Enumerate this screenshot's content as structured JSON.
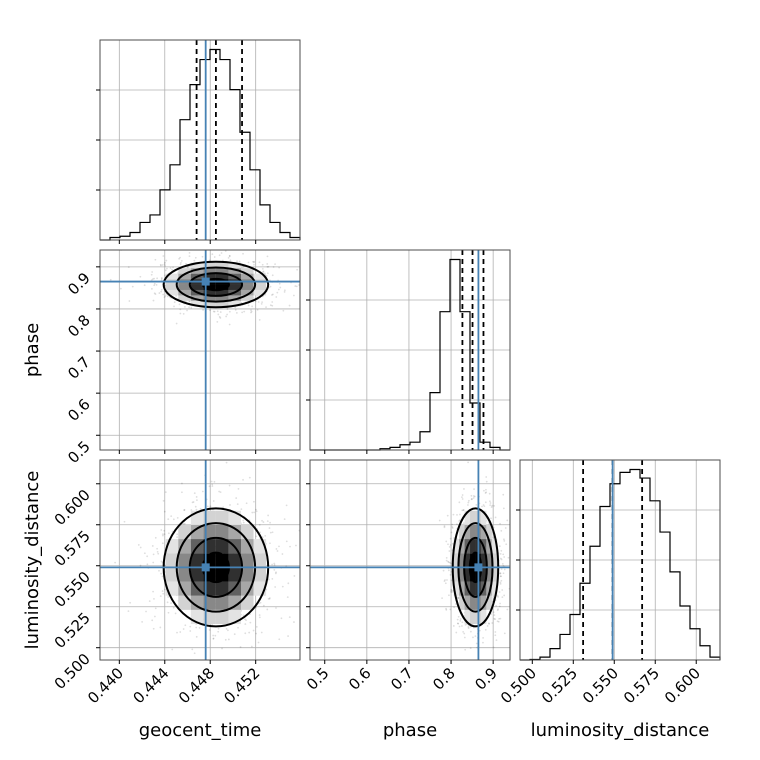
{
  "chart_data": {
    "type": "corner",
    "parameters": [
      "geocent_time",
      "phase",
      "luminosity_distance"
    ],
    "axis_labels": {
      "bottom": [
        "geocent_time",
        "phase",
        "luminosity_distance"
      ],
      "left": [
        "",
        "phase",
        "luminosity_distance"
      ]
    },
    "truths": {
      "geocent_time": 0.4476,
      "phase": 0.865,
      "luminosity_distance": 0.549
    },
    "truth_color": "#4682b4",
    "ranges": {
      "geocent_time": [
        0.4383,
        0.4559
      ],
      "phase": [
        0.465,
        0.94
      ],
      "luminosity_distance": [
        0.4925,
        0.6145
      ]
    },
    "ticks": {
      "geocent_time": [
        "0.440",
        "0.444",
        "0.448",
        "0.452"
      ],
      "phase": [
        "0.5",
        "0.6",
        "0.7",
        "0.8",
        "0.9"
      ],
      "luminosity_distance": [
        "0.500",
        "0.525",
        "0.550",
        "0.575",
        "0.600"
      ]
    },
    "grid": true,
    "histograms": {
      "geocent_time": {
        "bin_start": 0.4383,
        "bin_width": 0.00088,
        "counts": [
          0,
          1,
          1.5,
          3,
          7,
          10,
          20,
          30,
          48,
          62,
          72,
          76,
          72,
          60,
          43,
          28,
          14,
          7,
          3,
          1
        ],
        "quantiles": [
          0.4468,
          0.4485,
          0.4508
        ]
      },
      "phase": {
        "bin_start": 0.465,
        "bin_width": 0.02375,
        "counts": [
          0,
          0,
          0,
          0,
          0,
          0,
          0,
          0.5,
          1,
          2,
          3,
          7,
          22,
          53,
          73,
          53,
          18,
          3,
          1,
          0
        ],
        "quantiles": [
          0.827,
          0.851,
          0.877
        ]
      },
      "luminosity_distance": {
        "bin_start": 0.4925,
        "bin_width": 0.0061,
        "counts": [
          0,
          0.2,
          1,
          4,
          9,
          16,
          27,
          40,
          54,
          62,
          66,
          67,
          64,
          56,
          45,
          31,
          19,
          11,
          5,
          1
        ],
        "quantiles": [
          0.531,
          0.549,
          0.567
        ]
      }
    },
    "joint": [
      {
        "x": "geocent_time",
        "y": "phase",
        "mean": [
          0.4485,
          0.858
        ],
        "sd": [
          0.0023,
          0.027
        ],
        "rho": 0.0
      },
      {
        "x": "geocent_time",
        "y": "luminosity_distance",
        "mean": [
          0.4485,
          0.549
        ],
        "sd": [
          0.0023,
          0.018
        ],
        "rho": 0.0
      },
      {
        "x": "phase",
        "y": "luminosity_distance",
        "mean": [
          0.858,
          0.549
        ],
        "sd": [
          0.027,
          0.018
        ],
        "rho": 0.0
      }
    ],
    "contour_levels_sigma": [
      0.5,
      1.0,
      1.5,
      2.0
    ]
  }
}
